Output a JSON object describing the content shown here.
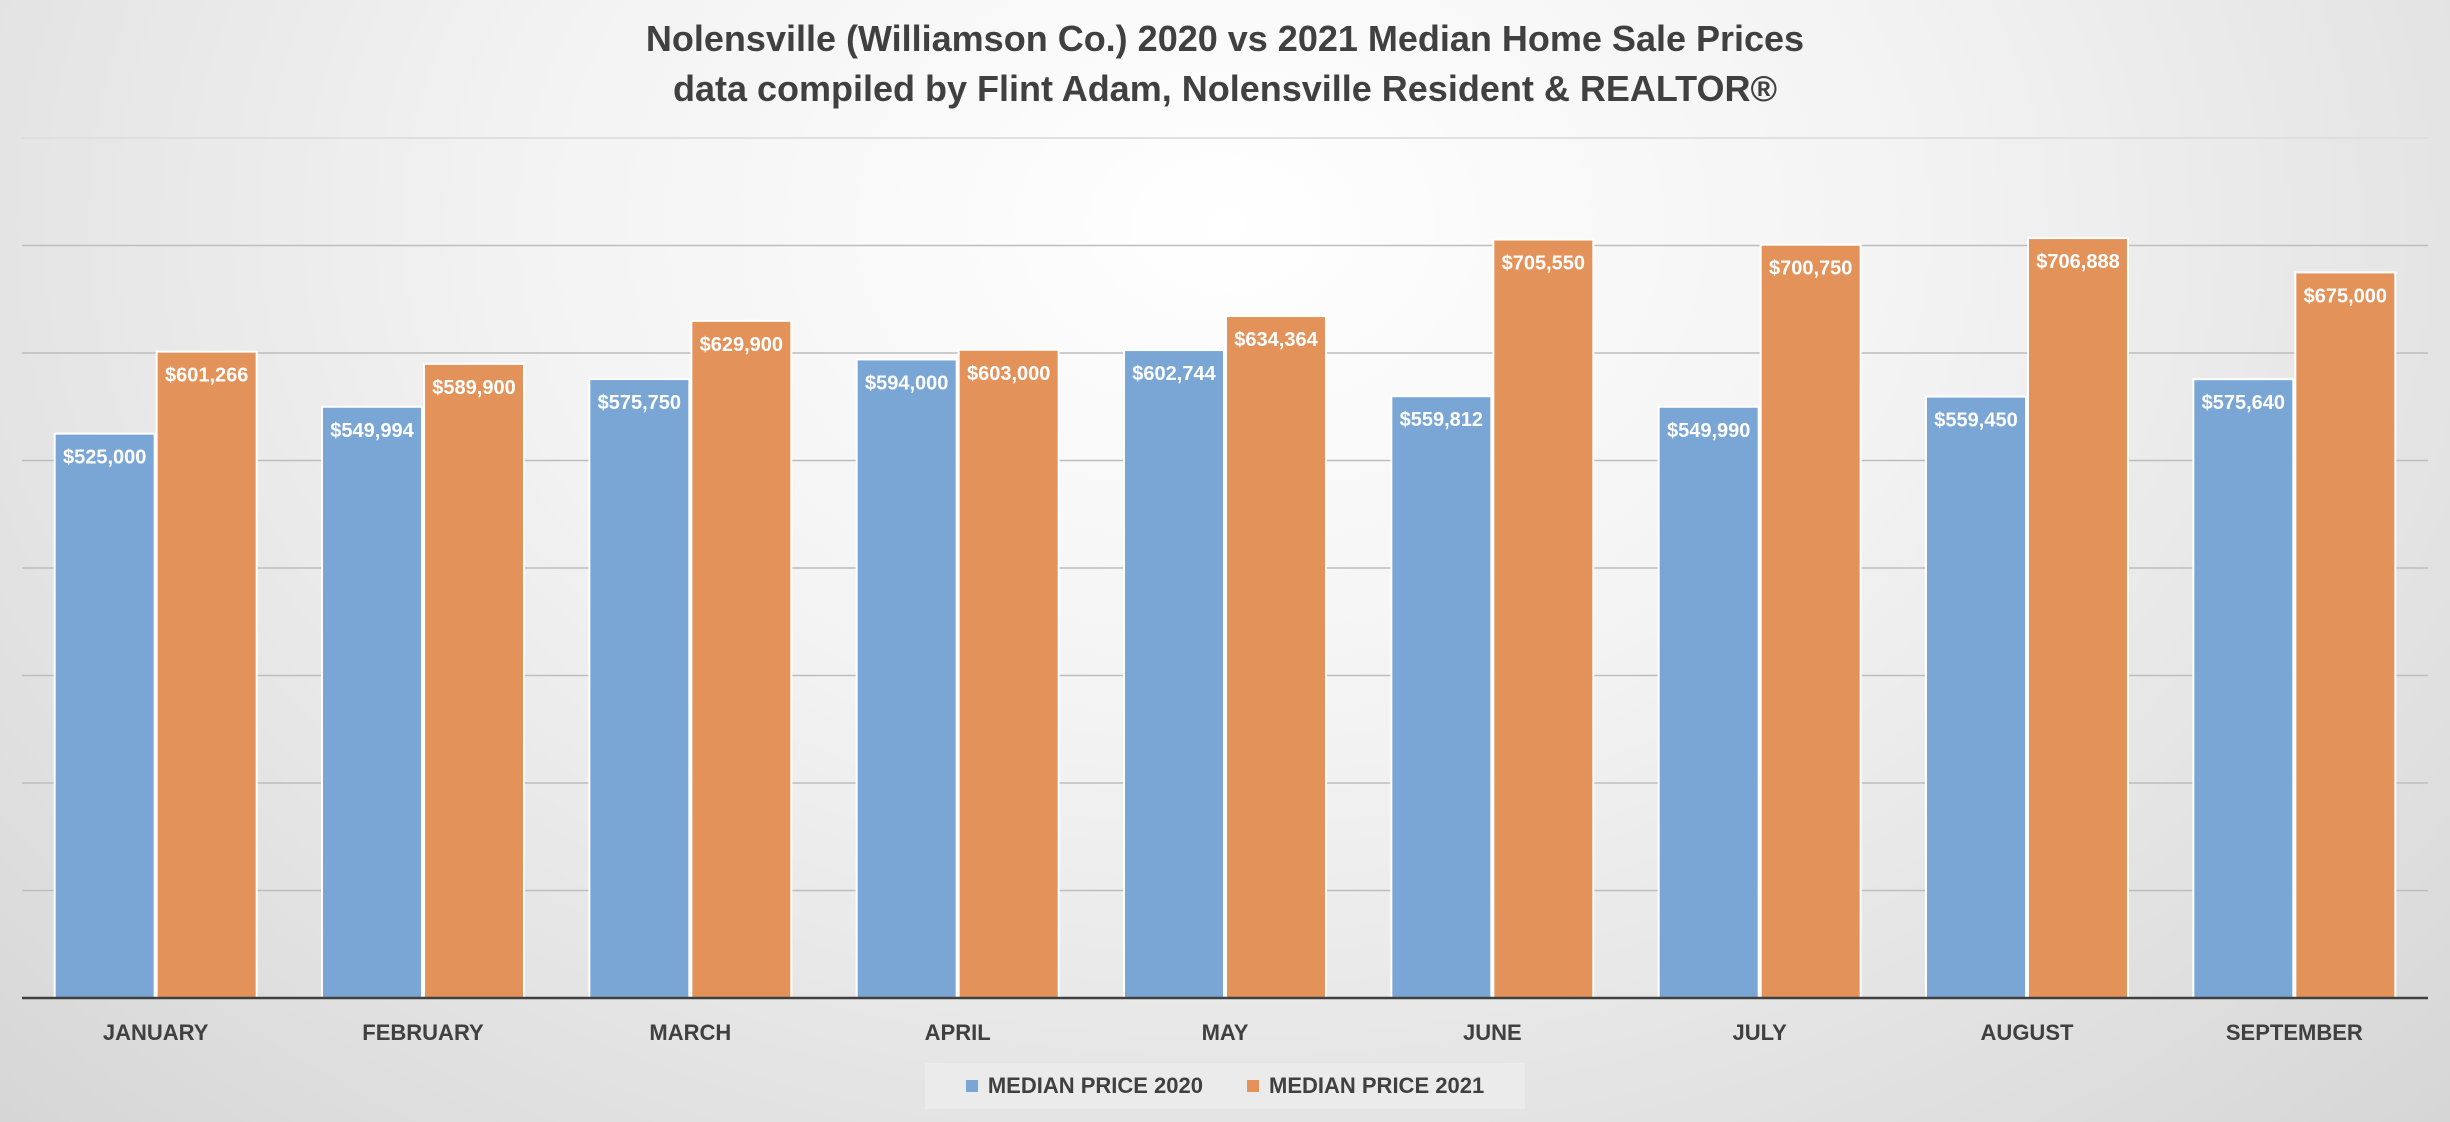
{
  "chart_data": {
    "type": "bar",
    "title": "Nolensville (Williamson Co.) 2020 vs 2021 Median Home Sale Prices",
    "subtitle": "data compiled by Flint Adam, Nolensville Resident & REALTOR®",
    "categories": [
      "JANUARY",
      "FEBRUARY",
      "MARCH",
      "APRIL",
      "MAY",
      "JUNE",
      "JULY",
      "AUGUST",
      "SEPTEMBER"
    ],
    "series": [
      {
        "name": "MEDIAN PRICE 2020",
        "color": "#7aa6d6",
        "values": [
          525000,
          549994,
          575750,
          594000,
          602744,
          559812,
          549990,
          559450,
          575640
        ],
        "labels": [
          "$525,000",
          "$549,994",
          "$575,750",
          "$594,000",
          "$602,744",
          "$559,812",
          "$549,990",
          "$559,450",
          "$575,640"
        ]
      },
      {
        "name": "MEDIAN PRICE 2021",
        "color": "#e3925a",
        "values": [
          601266,
          589900,
          629900,
          603000,
          634364,
          705550,
          700750,
          706888,
          675000
        ],
        "labels": [
          "$601,266",
          "$589,900",
          "$629,900",
          "$603,000",
          "$634,364",
          "$705,550",
          "$700,750",
          "$706,888",
          "$675,000"
        ]
      }
    ],
    "ylim": [
      0,
      800000
    ],
    "grid": true,
    "legend_position": "bottom"
  }
}
